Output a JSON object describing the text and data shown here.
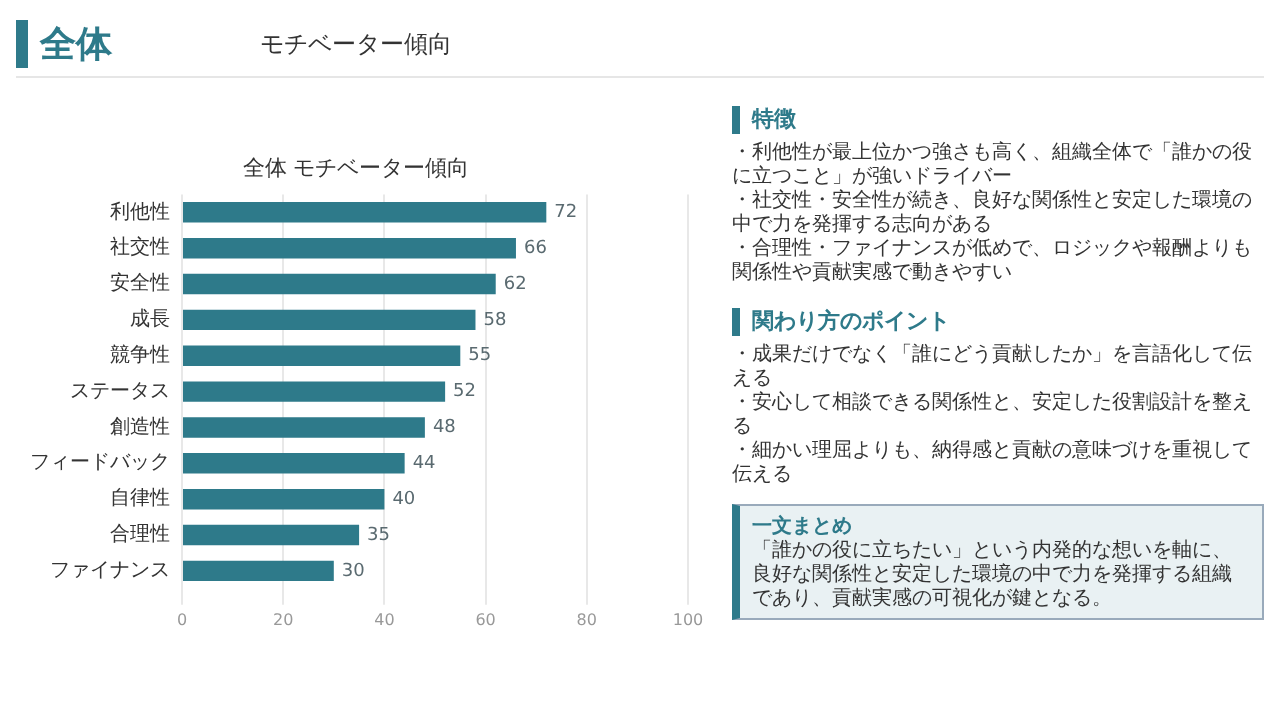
{
  "chart_data": {
    "type": "bar",
    "orientation": "horizontal",
    "title": "全体 モチベーター傾向",
    "categories": [
      "利他性",
      "社交性",
      "安全性",
      "成長",
      "競争性",
      "ステータス",
      "創造性",
      "フィードバック",
      "自律性",
      "合理性",
      "ファイナンス"
    ],
    "values": [
      72,
      66,
      62,
      58,
      55,
      52,
      48,
      44,
      40,
      35,
      30
    ],
    "color": "#2e7a8a",
    "xlim": [
      0,
      100
    ],
    "xticks": [
      0,
      20,
      40,
      60,
      80,
      100
    ],
    "grid": "x",
    "legend": false,
    "data_labels": true,
    "annotations": [
      "全体",
      "モチベーター傾向",
      "特徴",
      "・利他性が最上位かつ強さも高く、組織全体で「誰かの役に立つこと」が強いドライバー",
      "・社交性・安全性が続き、良好な関係性と安定した環境の中で力を発揮する志向がある",
      "・合理性・ファイナンスが低めで、ロジックや報酬よりも関係性や貢献実感で動きやすい",
      "関わり方のポイント",
      "・成果だけでなく「誰にどう貢献したか」を言語化して伝える",
      "・安心して相談できる関係性と、安定した役割設計を整える",
      "・細かい理屈よりも、納得感と貢献の意味づけを重視して伝える",
      "一文まとめ",
      "「誰かの役に立ちたい」という内発的な想いを軸に、良好な関係性と安定した環境の中で力を発揮する組織であり、貢献実感の可視化が鍵となる。"
    ]
  }
}
